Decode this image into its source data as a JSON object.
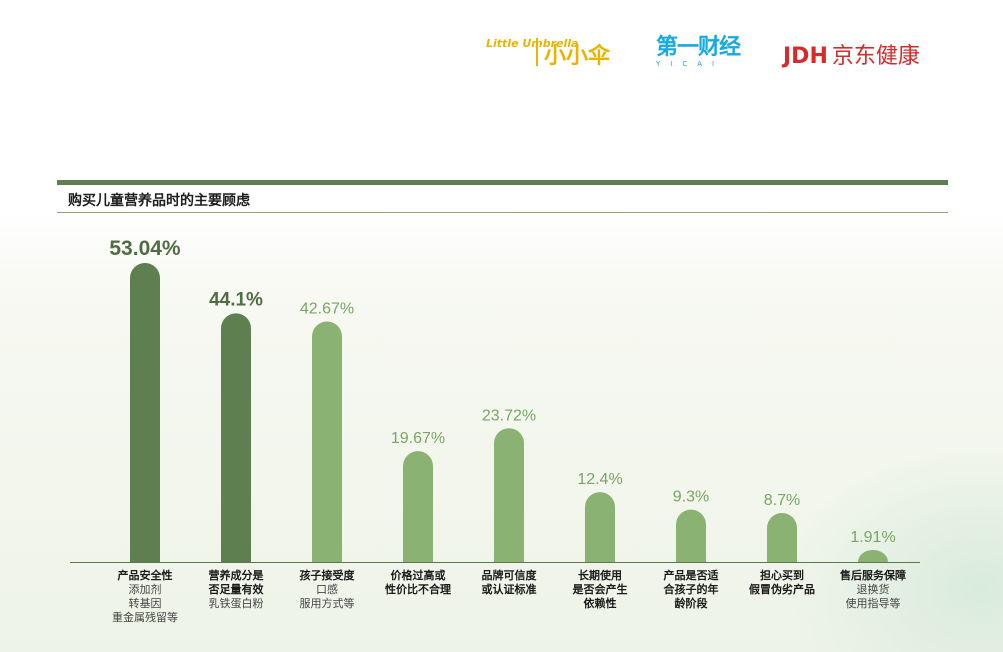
{
  "logos": {
    "umbrella_mini": "Little Umbrella",
    "umbrella_cn": "小小伞",
    "yicai_cn": "第一财经",
    "yicai_en": "YICAI",
    "jdh_en": "JDH",
    "jdh_cn": "京东健康"
  },
  "chart_data": {
    "type": "bar",
    "title": "购买儿童营养品时的主要顾虑",
    "ylim": [
      0,
      55
    ],
    "grid": false,
    "categories": [
      "产品安全性",
      "营养成分是否足量有效",
      "孩子接受度",
      "价格过高或性价比不合理",
      "品牌可信度或认证标准",
      "长期使用是否会产生依赖性",
      "产品是否适合孩子的年龄段",
      "担心买到假冒伪劣产品",
      "售后服务保障"
    ],
    "values": [
      53.04,
      44.1,
      42.67,
      19.67,
      23.72,
      12.4,
      9.3,
      8.7,
      1.91
    ],
    "value_labels": [
      "53.04%",
      "44.1%",
      "42.67%",
      "19.67%",
      "23.72%",
      "12.4%",
      "9.3%",
      "8.7%",
      "1.91%"
    ],
    "label_lines": [
      [
        "产品安全性"
      ],
      [
        "营养成分是",
        "否足量有效"
      ],
      [
        "孩子接受度"
      ],
      [
        "价格过高或",
        "性价比不合理"
      ],
      [
        "品牌可信度",
        "或认证标准"
      ],
      [
        "长期使用",
        "是否会产生",
        "依赖性"
      ],
      [
        "产品是否适",
        "合孩子的年",
        "龄阶段"
      ],
      [
        "担心买到",
        "假冒伪劣产品"
      ],
      [
        "售后服务保障"
      ]
    ],
    "sub_lines": [
      [
        "添加剂",
        "转基因",
        "重金属残留等"
      ],
      [
        "乳铁蛋白粉"
      ],
      [
        "口感",
        "服用方式等"
      ],
      [],
      [],
      [],
      [],
      [],
      [
        "退换货",
        "使用指导等"
      ]
    ],
    "highlight_count": 2,
    "colors": {
      "dark": "#5e7f4f",
      "light": "#8ab373",
      "dark_label": "#4f6d42",
      "light_label": "#7aa564"
    }
  }
}
